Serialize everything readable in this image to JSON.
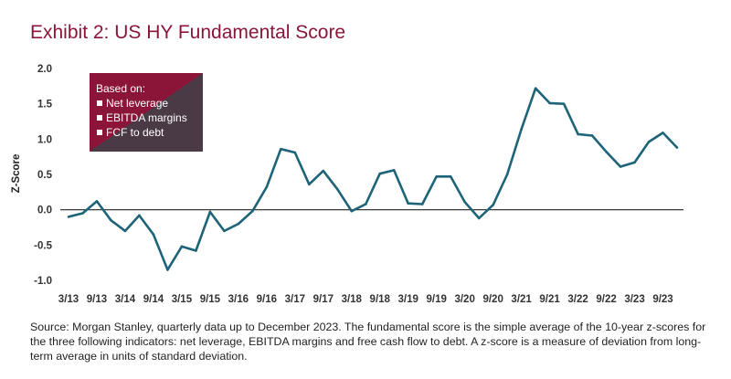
{
  "title": "Exhibit 2:  US HY Fundamental Score",
  "footnote": "Source: Morgan Stanley, quarterly data up to December 2023. The fundamental score is the simple average of the 10-year z-scores for the three following indicators: net leverage, EBITDA margins and free cash flow to debt. A z-score is a measure of deviation from long-term average in units of standard deviation.",
  "colors": {
    "title": "#8a1538",
    "line": "#1e6478",
    "legend_dark": "#8a1538",
    "legend_mid": "#4a3a46"
  },
  "legend": {
    "heading": "Based on:",
    "items": [
      "Net leverage",
      "EBITDA margins",
      "FCF to debt"
    ]
  },
  "chart_data": {
    "type": "line",
    "title": "Exhibit 2:  US HY Fundamental Score",
    "ylabel": "Z-Score",
    "xlabel": "",
    "ylim": [
      -1.0,
      2.0
    ],
    "yticks": [
      "2.0",
      "1.5",
      "1.0",
      "0.5",
      "0.0",
      "-0.5",
      "-1.0"
    ],
    "ytick_values": [
      2.0,
      1.5,
      1.0,
      0.5,
      0.0,
      -0.5,
      -1.0
    ],
    "xtick_labels": [
      "3/13",
      "9/13",
      "3/14",
      "9/14",
      "3/15",
      "9/15",
      "3/16",
      "9/16",
      "3/17",
      "9/17",
      "3/18",
      "9/18",
      "3/19",
      "9/19",
      "3/20",
      "9/20",
      "3/21",
      "9/21",
      "3/22",
      "9/22",
      "3/23",
      "9/23"
    ],
    "grid": false,
    "legend_position": "top-left",
    "series": [
      {
        "x": [
          "3/13",
          "6/13",
          "9/13",
          "12/13",
          "3/14",
          "6/14",
          "9/14",
          "12/14",
          "3/15",
          "6/15",
          "9/15",
          "12/15",
          "3/16",
          "6/16",
          "9/16",
          "12/16",
          "3/17",
          "6/17",
          "9/17",
          "12/17",
          "3/18",
          "6/18",
          "9/18",
          "12/18",
          "3/19",
          "6/19",
          "9/19",
          "12/19",
          "3/20",
          "6/20",
          "9/20",
          "12/20",
          "3/21",
          "6/21",
          "9/21",
          "12/21",
          "3/22",
          "6/22",
          "9/22",
          "12/22",
          "3/23",
          "6/23",
          "9/23",
          "12/23"
        ],
        "values": [
          -0.1,
          -0.05,
          0.12,
          -0.15,
          -0.3,
          -0.08,
          -0.35,
          -0.85,
          -0.52,
          -0.58,
          -0.03,
          -0.3,
          -0.2,
          -0.02,
          0.32,
          0.86,
          0.81,
          0.36,
          0.55,
          0.29,
          -0.02,
          0.08,
          0.51,
          0.56,
          0.09,
          0.08,
          0.47,
          0.47,
          0.11,
          -0.12,
          0.07,
          0.5,
          1.14,
          1.72,
          1.51,
          1.5,
          1.07,
          1.05,
          0.82,
          0.61,
          0.67,
          0.96,
          1.09,
          0.88
        ]
      }
    ]
  }
}
